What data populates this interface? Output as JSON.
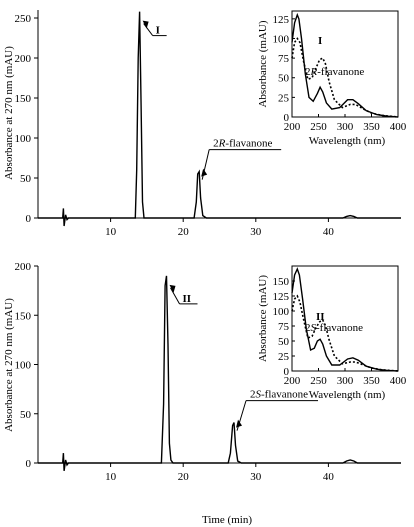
{
  "chart_data": [
    {
      "type": "line",
      "ylabel": "Absorbance at 270 nm (mAU)",
      "xlabel": "",
      "xlim": [
        0,
        50
      ],
      "ylim": [
        0,
        260
      ],
      "xticks": [
        10,
        20,
        30,
        40
      ],
      "yticks": [
        0,
        50,
        100,
        150,
        200,
        250
      ],
      "series": [
        {
          "x": [
            0,
            3.4,
            3.5,
            3.6,
            3.8,
            4.0,
            4.2,
            5,
            13.4,
            13.6,
            13.8,
            14.0,
            14.2,
            14.4,
            14.6,
            15,
            21.5,
            21.8,
            22.0,
            22.2,
            22.4,
            22.7,
            23.2,
            42,
            42.5,
            43,
            43.5,
            44,
            50
          ],
          "y": [
            0,
            0,
            12,
            -10,
            4,
            -2,
            0,
            0,
            0,
            60,
            200,
            258,
            140,
            20,
            0,
            0,
            0,
            20,
            55,
            58,
            25,
            3,
            0,
            0,
            2,
            3,
            2,
            0,
            0
          ]
        }
      ],
      "annotations": [
        {
          "label": "I",
          "x": 14.0,
          "y": 258
        },
        {
          "label": "2R-flavanone",
          "label_pre": "2",
          "label_ital": "R",
          "label_post": "-flavanone",
          "x": 22.2,
          "y": 58
        }
      ],
      "inset": {
        "xlabel": "Wavelength (nm)",
        "ylabel": "Absorbance (mAU)",
        "xlim": [
          200,
          400
        ],
        "ylim": [
          0,
          135
        ],
        "xticks": [
          200,
          250,
          300,
          350,
          400
        ],
        "yticks": [
          0,
          25,
          50,
          75,
          100,
          125
        ],
        "labels": [
          {
            "text": "I"
          },
          {
            "pre": "2",
            "ital": "R",
            "post": "-flavanone"
          }
        ],
        "series": [
          {
            "x": [
              200,
              205,
              210,
              213,
              218,
              225,
              232,
              240,
              248,
              253,
              258,
              265,
              275,
              290,
              305,
              315,
              325,
              340,
              360,
              380,
              400
            ],
            "y": [
              95,
              120,
              130,
              125,
              100,
              55,
              25,
              20,
              30,
              38,
              32,
              18,
              10,
              12,
              22,
              22,
              17,
              8,
              3,
              1,
              0
            ]
          },
          {
            "x": [
              200,
              205,
              210,
              215,
              222,
              230,
              238,
              245,
              252,
              258,
              263,
              270,
              280,
              295,
              310,
              320,
              335,
              350,
              370,
              400
            ],
            "y": [
              75,
              95,
              100,
              95,
              70,
              48,
              50,
              62,
              73,
              75,
              68,
              45,
              22,
              12,
              16,
              16,
              10,
              5,
              2,
              0
            ]
          }
        ]
      }
    },
    {
      "type": "line",
      "ylabel": "Absorbance at 270 nm (mAU)",
      "xlabel": "Time (min)",
      "xlim": [
        0,
        50
      ],
      "ylim": [
        0,
        200
      ],
      "xticks": [
        10,
        20,
        30,
        40
      ],
      "yticks": [
        0,
        50,
        100,
        150,
        200
      ],
      "series": [
        {
          "x": [
            0,
            3.4,
            3.5,
            3.6,
            3.8,
            4.0,
            4.2,
            5,
            17.0,
            17.3,
            17.5,
            17.7,
            17.9,
            18.1,
            18.3,
            18.6,
            26.2,
            26.5,
            26.8,
            27.0,
            27.2,
            27.5,
            28,
            42,
            42.5,
            43,
            43.5,
            44,
            50
          ],
          "y": [
            0,
            0,
            10,
            -8,
            3,
            -2,
            0,
            0,
            0,
            60,
            180,
            190,
            120,
            20,
            3,
            0,
            0,
            10,
            38,
            41,
            18,
            2,
            0,
            0,
            2,
            3,
            2,
            0,
            0
          ]
        }
      ],
      "annotations": [
        {
          "label": "II",
          "x": 17.7,
          "y": 190
        },
        {
          "label": "2S-flavanone",
          "label_pre": "2",
          "label_ital": "S",
          "label_post": "-flavanone",
          "x": 27.0,
          "y": 41
        }
      ],
      "inset": {
        "xlabel": "Wavelength (nm)",
        "ylabel": "Absorbance (mAU)",
        "xlim": [
          200,
          400
        ],
        "ylim": [
          0,
          175
        ],
        "xticks": [
          200,
          250,
          300,
          350,
          400
        ],
        "yticks": [
          0,
          25,
          50,
          75,
          100,
          125,
          150
        ],
        "labels": [
          {
            "text": "II"
          },
          {
            "pre": "2",
            "ital": "S",
            "post": "-flavanone"
          }
        ],
        "series": [
          {
            "x": [
              200,
              205,
              210,
              214,
              220,
              227,
              235,
              242,
              248,
              253,
              258,
              265,
              275,
              290,
              305,
              315,
              325,
              340,
              360,
              380,
              400
            ],
            "y": [
              130,
              160,
              170,
              160,
              120,
              70,
              35,
              38,
              50,
              53,
              45,
              25,
              10,
              10,
              20,
              22,
              18,
              8,
              3,
              1,
              0
            ]
          },
          {
            "x": [
              200,
              205,
              210,
              215,
              222,
              230,
              238,
              245,
              252,
              258,
              263,
              270,
              280,
              295,
              310,
              320,
              335,
              350,
              370,
              400
            ],
            "y": [
              100,
              120,
              125,
              115,
              85,
              55,
              58,
              72,
              82,
              85,
              76,
              52,
              25,
              12,
              15,
              15,
              10,
              5,
              2,
              0
            ]
          }
        ]
      }
    }
  ]
}
